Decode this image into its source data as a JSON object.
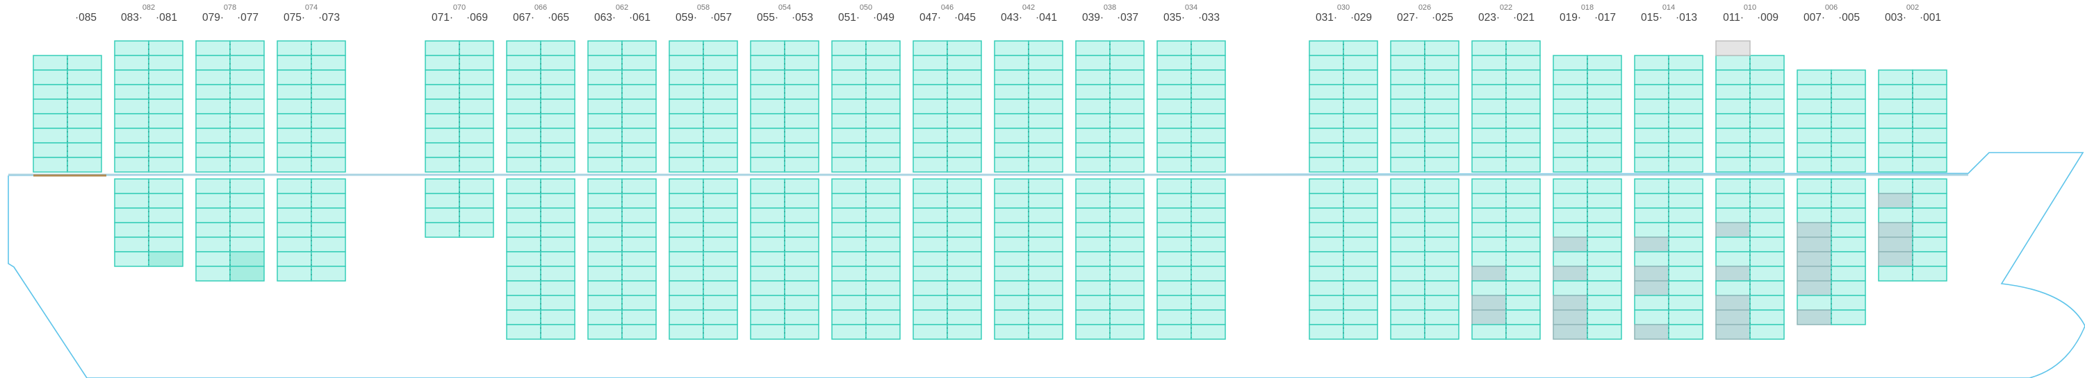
{
  "colors": {
    "hull": "#5ec4ea",
    "deck_line": "#a9d3e2",
    "cell_fill": "#c6f6ee",
    "cell_stroke": "#36cdb8",
    "cell_highlight": "#a5ede0",
    "cell_gray": "#bcdadb",
    "cell_gray_stroke": "#8fb5b7",
    "cell_empty": "#e4e4e4",
    "cell_empty_stroke": "#bdbdbd",
    "divider": "#2a9c8d",
    "accent_bar": "#b08a52"
  },
  "bays": [
    {
      "id": "b085",
      "top_label": "",
      "left_label": "",
      "right_label": "·085"
    },
    {
      "id": "b082",
      "top_label": "082",
      "left_label": "083·",
      "right_label": "·081"
    },
    {
      "id": "b078",
      "top_label": "078",
      "left_label": "079·",
      "right_label": "·077"
    },
    {
      "id": "b074",
      "top_label": "074",
      "left_label": "075·",
      "right_label": "·073"
    },
    {
      "id": "b070",
      "top_label": "070",
      "left_label": "071·",
      "right_label": "·069"
    },
    {
      "id": "b066",
      "top_label": "066",
      "left_label": "067·",
      "right_label": "·065"
    },
    {
      "id": "b062",
      "top_label": "062",
      "left_label": "063·",
      "right_label": "·061"
    },
    {
      "id": "b058",
      "top_label": "058",
      "left_label": "059·",
      "right_label": "·057"
    },
    {
      "id": "b054",
      "top_label": "054",
      "left_label": "055·",
      "right_label": "·053"
    },
    {
      "id": "b050",
      "top_label": "050",
      "left_label": "051·",
      "right_label": "·049"
    },
    {
      "id": "b046",
      "top_label": "046",
      "left_label": "047·",
      "right_label": "·045"
    },
    {
      "id": "b042",
      "top_label": "042",
      "left_label": "043·",
      "right_label": "·041"
    },
    {
      "id": "b038",
      "top_label": "038",
      "left_label": "039·",
      "right_label": "·037"
    },
    {
      "id": "b034",
      "top_label": "034",
      "left_label": "035·",
      "right_label": "·033"
    },
    {
      "id": "b030",
      "top_label": "030",
      "left_label": "031·",
      "right_label": "·029"
    },
    {
      "id": "b026",
      "top_label": "026",
      "left_label": "027·",
      "right_label": "·025"
    },
    {
      "id": "b022",
      "top_label": "022",
      "left_label": "023·",
      "right_label": "·021"
    },
    {
      "id": "b018",
      "top_label": "018",
      "left_label": "019·",
      "right_label": "·017"
    },
    {
      "id": "b014",
      "top_label": "014",
      "left_label": "015·",
      "right_label": "·013"
    },
    {
      "id": "b010",
      "top_label": "010",
      "left_label": "011·",
      "right_label": "·009"
    },
    {
      "id": "b006",
      "top_label": "006",
      "left_label": "007·",
      "right_label": "·005"
    },
    {
      "id": "b002",
      "top_label": "002",
      "left_label": "003·",
      "right_label": "·001"
    }
  ]
}
